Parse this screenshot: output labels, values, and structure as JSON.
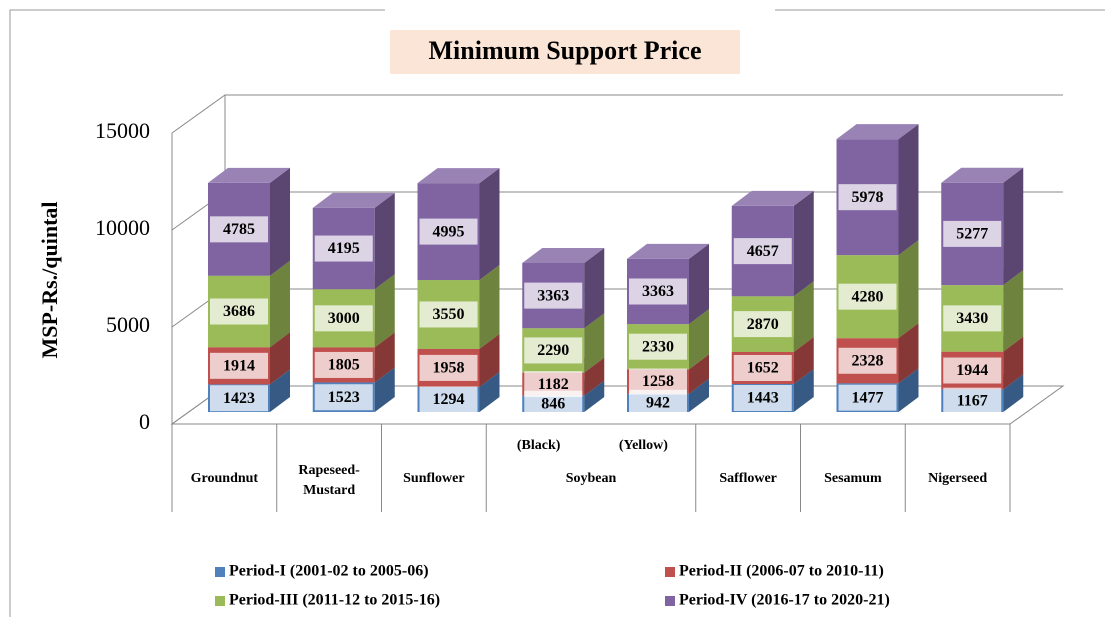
{
  "chart_data": {
    "type": "bar3d_stacked",
    "title": "Minimum Support Price",
    "y_label": "MSP-Rs./quintal",
    "categories": [
      {
        "label": "Groundnut"
      },
      {
        "label": "Rapeseed-Mustard"
      },
      {
        "label": "Sunflower"
      },
      {
        "label": "(Black)",
        "group": "Soybean"
      },
      {
        "label": "(Yellow)",
        "group": "Soybean"
      },
      {
        "label": "Safflower"
      },
      {
        "label": "Sesamum"
      },
      {
        "label": "Nigerseed"
      }
    ],
    "series": [
      {
        "name": "Period-I (2001-02 to 2005-06)",
        "color": "#4f81bd",
        "values": [
          1423,
          1523,
          1294,
          846,
          942,
          1443,
          1477,
          1167
        ]
      },
      {
        "name": "Period-II (2006-07 to 2010-11)",
        "color": "#c0504d",
        "values": [
          1914,
          1805,
          1958,
          1182,
          1258,
          1652,
          2328,
          1944
        ]
      },
      {
        "name": "Period-III (2011-12 to 2015-16)",
        "color": "#9bbb59",
        "values": [
          3686,
          3000,
          3550,
          2290,
          2330,
          2870,
          4280,
          3430
        ]
      },
      {
        "name": "Period-IV (2016-17 to 2020-21)",
        "color": "#8064a2",
        "values": [
          4785,
          4195,
          4995,
          3363,
          3363,
          4657,
          5978,
          5277
        ]
      }
    ],
    "ylim": [
      0,
      15000
    ],
    "yticks": [
      0,
      5000,
      10000,
      15000
    ],
    "grid": true,
    "legend": "bottom"
  }
}
